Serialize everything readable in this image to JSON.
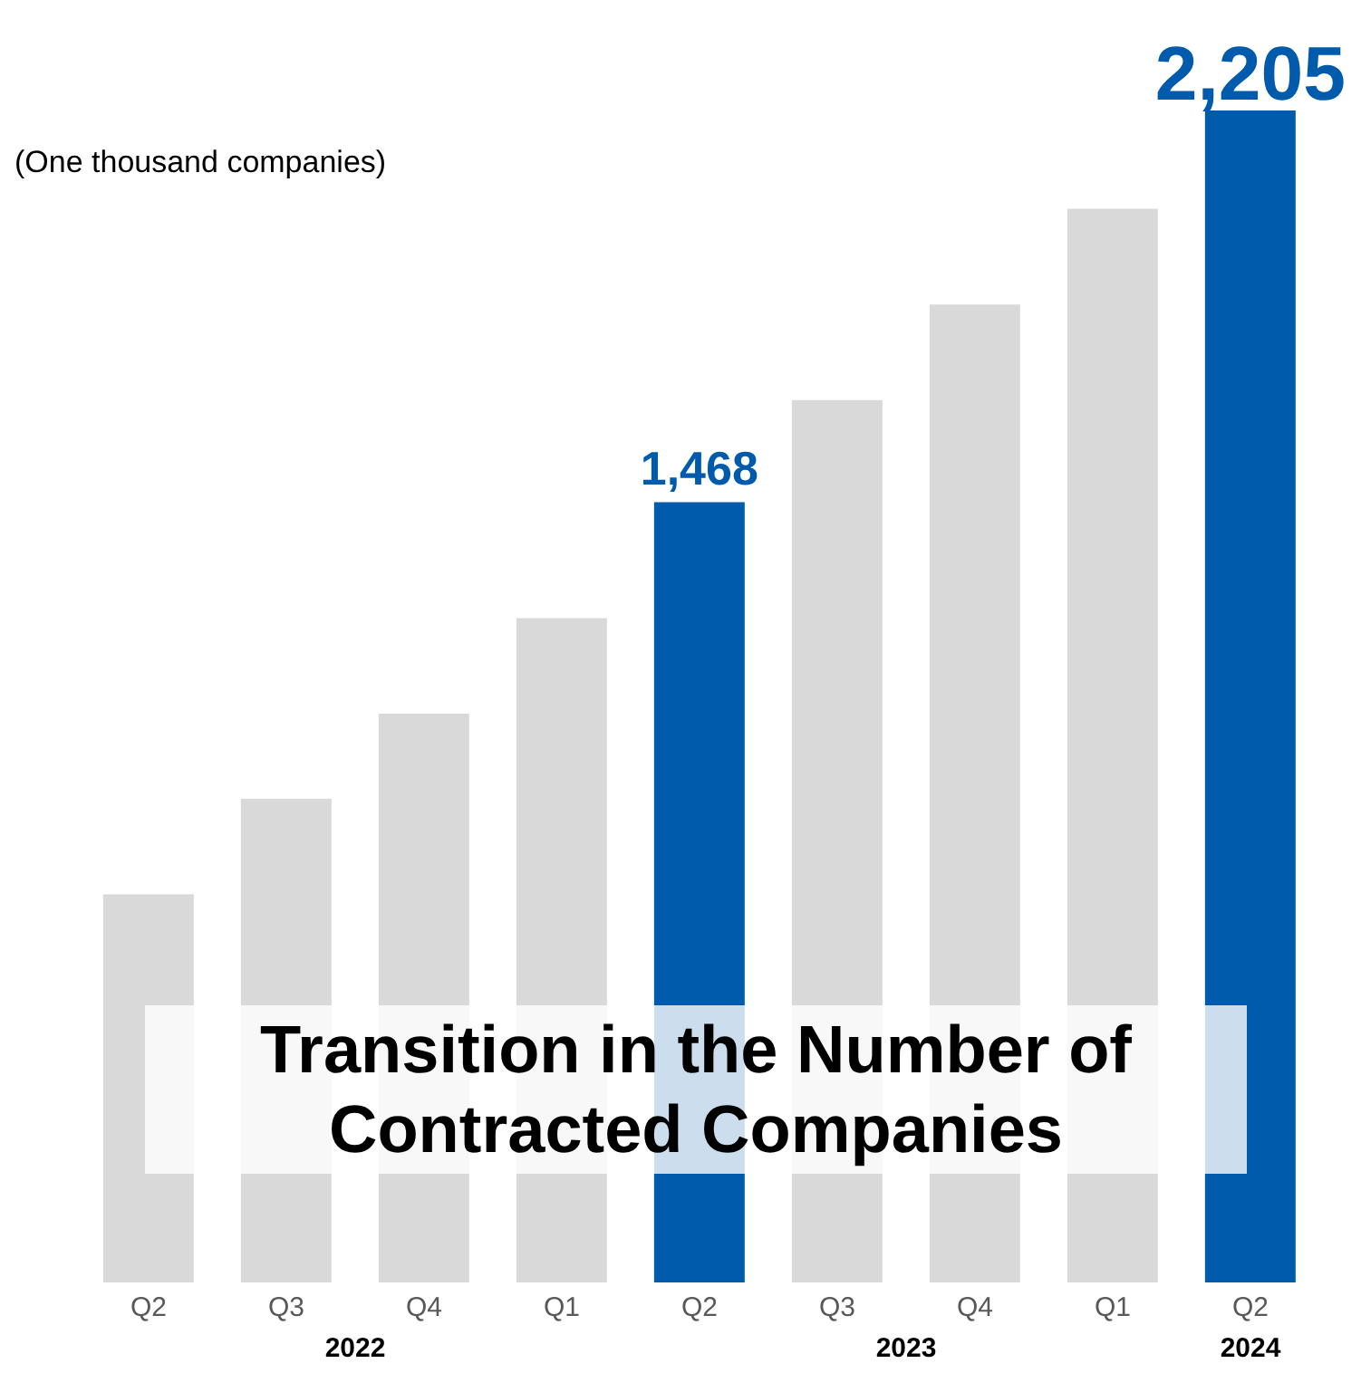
{
  "chart_data": {
    "type": "bar",
    "title": "Transition in the Number of Contracted Companies",
    "ylabel": "(One thousand companies)",
    "categories": [
      "Q2",
      "Q3",
      "Q4",
      "Q1",
      "Q2",
      "Q3",
      "Q4",
      "Q1",
      "Q2"
    ],
    "values": [
      730,
      910,
      1070,
      1250,
      1468,
      1660,
      1840,
      2020,
      2205
    ],
    "colors": [
      "#d9d9d9",
      "#d9d9d9",
      "#d9d9d9",
      "#d9d9d9",
      "#005bac",
      "#d9d9d9",
      "#d9d9d9",
      "#d9d9d9",
      "#005bac"
    ],
    "value_labels": [
      null,
      null,
      null,
      null,
      "1,468",
      null,
      null,
      null,
      "2,205"
    ],
    "annotations": [
      "2022",
      "2023",
      "2024"
    ]
  }
}
